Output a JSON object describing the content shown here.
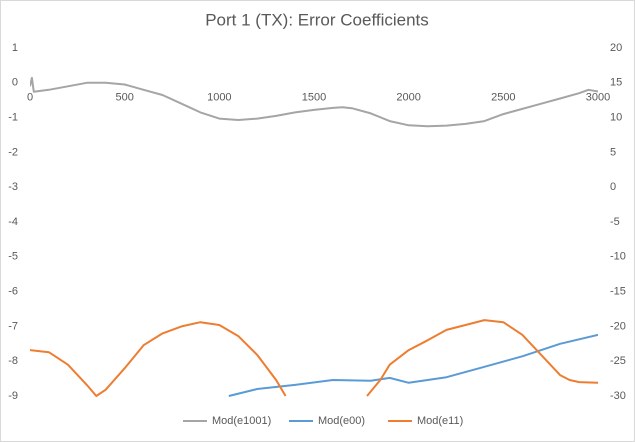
{
  "chart_data": {
    "type": "line",
    "title": "Port 1 (TX): Error Coefficients",
    "xlim": [
      0,
      3000
    ],
    "xticks": [
      0,
      500,
      1000,
      1500,
      2000,
      2500,
      3000
    ],
    "ylim": [
      -9,
      1
    ],
    "yticks": [
      1,
      0,
      -1,
      -2,
      -3,
      -4,
      -5,
      -6,
      -7,
      -8,
      -9
    ],
    "y2lim": [
      -30,
      20
    ],
    "y2ticks": [
      20,
      15,
      10,
      5,
      0,
      -5,
      -10,
      -15,
      -20,
      -25,
      -30
    ],
    "grid": false,
    "legend": "bottom",
    "series": [
      {
        "name": "Mod(e1001)",
        "color": "#a5a5a5",
        "axis": "y",
        "x": [
          0,
          10,
          20,
          100,
          200,
          300,
          400,
          500,
          600,
          700,
          800,
          900,
          1000,
          1100,
          1200,
          1300,
          1400,
          1500,
          1600,
          1650,
          1700,
          1800,
          1900,
          2000,
          2100,
          2200,
          2300,
          2400,
          2500,
          2600,
          2700,
          2800,
          2900,
          2950,
          3000
        ],
        "values": [
          -0.1,
          0.14,
          -0.26,
          -0.2,
          -0.1,
          0,
          0,
          -0.05,
          -0.2,
          -0.35,
          -0.6,
          -0.85,
          -1.03,
          -1.07,
          -1.03,
          -0.95,
          -0.85,
          -0.78,
          -0.72,
          -0.7,
          -0.73,
          -0.88,
          -1.1,
          -1.22,
          -1.25,
          -1.23,
          -1.18,
          -1.1,
          -0.9,
          -0.75,
          -0.6,
          -0.45,
          -0.3,
          -0.2,
          -0.25
        ]
      },
      {
        "name": "Mod(e00)",
        "color": "#5b9bd5",
        "axis": "y2",
        "x": [
          1050,
          1200,
          1400,
          1600,
          1800,
          1900,
          2000,
          2200,
          2400,
          2600,
          2800,
          3000
        ],
        "values": [
          -30,
          -29,
          -28.4,
          -27.7,
          -27.8,
          -27.4,
          -28.1,
          -27.3,
          -25.8,
          -24.3,
          -22.5,
          -21.2
        ]
      },
      {
        "name": "Mod(e11)",
        "color": "#ed7d31",
        "axis": "y2",
        "x": [
          0,
          100,
          200,
          300,
          350,
          400,
          500,
          600,
          700,
          800,
          900,
          1000,
          1100,
          1200,
          1300,
          1350,
          1500,
          1780,
          1850,
          1900,
          2000,
          2100,
          2200,
          2300,
          2400,
          2500,
          2600,
          2700,
          2800,
          2850,
          2900,
          3000
        ],
        "values": [
          -23.4,
          -23.7,
          -25.5,
          -28.4,
          -30,
          -29.1,
          -26,
          -22.7,
          -21,
          -20,
          -19.4,
          -19.8,
          -21.4,
          -24.1,
          -27.7,
          -30,
          null,
          -30,
          -27.7,
          -25.5,
          -23.4,
          -22,
          -20.5,
          -19.8,
          -19.1,
          -19.4,
          -21.2,
          -24.1,
          -27,
          -27.7,
          -28,
          -28.1
        ]
      }
    ]
  }
}
